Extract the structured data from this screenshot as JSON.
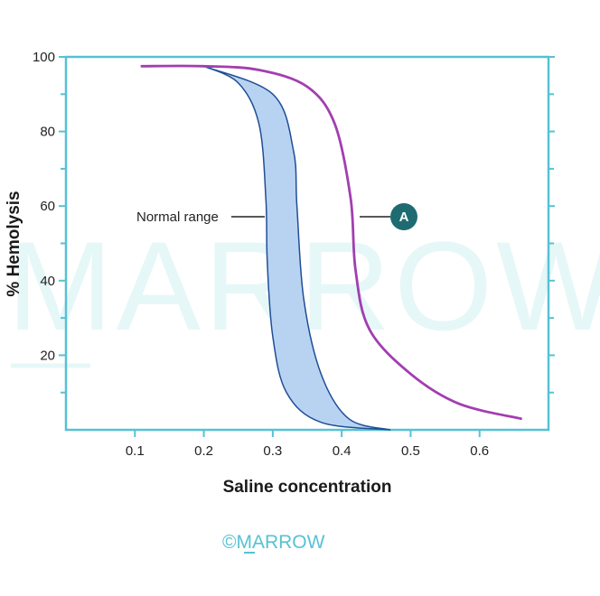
{
  "chart_data": {
    "type": "line",
    "xlabel": "Saline concentration",
    "ylabel": "% Hemolysis",
    "xlim": [
      0,
      0.7
    ],
    "ylim": [
      0,
      100
    ],
    "x_ticks": [
      0.1,
      0.2,
      0.3,
      0.4,
      0.5,
      0.6
    ],
    "x_tick_labels": [
      "0.1",
      "0.2",
      "0.3",
      "0.4",
      "0.5",
      "0.6"
    ],
    "y_ticks": [
      20,
      40,
      60,
      80,
      100
    ],
    "y_tick_labels": [
      "20",
      "40",
      "60",
      "80",
      "100"
    ],
    "grid": false,
    "normal_range_band": {
      "label": "Normal range",
      "lower_edge": [
        {
          "x": 0.2,
          "y": 97.5
        },
        {
          "x": 0.25,
          "y": 93
        },
        {
          "x": 0.28,
          "y": 82
        },
        {
          "x": 0.29,
          "y": 62
        },
        {
          "x": 0.292,
          "y": 45
        },
        {
          "x": 0.3,
          "y": 25
        },
        {
          "x": 0.32,
          "y": 10
        },
        {
          "x": 0.37,
          "y": 2
        },
        {
          "x": 0.47,
          "y": 0
        }
      ],
      "upper_edge": [
        {
          "x": 0.2,
          "y": 97.5
        },
        {
          "x": 0.3,
          "y": 90
        },
        {
          "x": 0.33,
          "y": 75
        },
        {
          "x": 0.335,
          "y": 60
        },
        {
          "x": 0.345,
          "y": 35
        },
        {
          "x": 0.37,
          "y": 15
        },
        {
          "x": 0.41,
          "y": 3
        },
        {
          "x": 0.47,
          "y": 0
        }
      ],
      "fill": "#b8d3f2",
      "stroke": "#1f4e96"
    },
    "series": [
      {
        "marker": "A",
        "color": "#a23eb0",
        "points": [
          {
            "x": 0.11,
            "y": 97.5
          },
          {
            "x": 0.2,
            "y": 97.5
          },
          {
            "x": 0.28,
            "y": 96.5
          },
          {
            "x": 0.35,
            "y": 92
          },
          {
            "x": 0.39,
            "y": 82
          },
          {
            "x": 0.413,
            "y": 62
          },
          {
            "x": 0.42,
            "y": 43
          },
          {
            "x": 0.44,
            "y": 27
          },
          {
            "x": 0.5,
            "y": 15
          },
          {
            "x": 0.57,
            "y": 7
          },
          {
            "x": 0.66,
            "y": 3
          }
        ]
      }
    ],
    "colors": {
      "axis": "#56c2d3",
      "marker_fill": "#1f6b72"
    }
  },
  "watermark": {
    "text": "MARROW"
  },
  "footer": {
    "copyright": "©MARROW"
  }
}
